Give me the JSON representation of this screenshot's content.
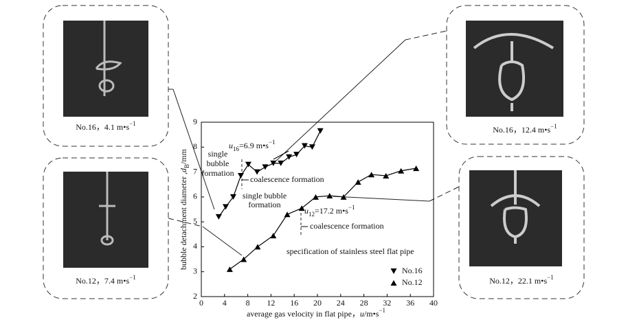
{
  "chart_data": {
    "type": "line",
    "x_label": {
      "text": "average gas velocity  in flat pipe，",
      "var": "u",
      "unit": "/m•s",
      "sup": "−1"
    },
    "y_label": {
      "text": "bubble detachment diameter ,",
      "var": "d",
      "sub": "B",
      "unit": "/mm"
    },
    "xlim": [
      0,
      40
    ],
    "xticks": [
      0,
      4,
      8,
      12,
      16,
      20,
      24,
      28,
      32,
      36,
      40
    ],
    "ylim": [
      2,
      9
    ],
    "yticks": [
      2,
      3,
      4,
      5,
      6,
      7,
      8,
      9
    ],
    "series": [
      {
        "name": "No.16",
        "marker": "down-triangle",
        "color": "#000000",
        "x": [
          3,
          4.2,
          5.5,
          6.8,
          8.1,
          9.6,
          11,
          12.4,
          13.7,
          15.1,
          16.4,
          17.8,
          19.1,
          20.5
        ],
        "values": [
          5.2,
          5.6,
          6.0,
          6.85,
          7.3,
          7.0,
          7.2,
          7.35,
          7.35,
          7.6,
          7.7,
          8.05,
          8.0,
          8.65
        ]
      },
      {
        "name": "No.12",
        "marker": "up-triangle",
        "color": "#000000",
        "x": [
          4.9,
          7.3,
          9.7,
          12.4,
          14.8,
          17.3,
          19.7,
          22.1,
          24.5,
          27,
          29.3,
          31.8,
          34.4,
          37
        ],
        "values": [
          3.1,
          3.5,
          4.0,
          4.45,
          5.3,
          5.55,
          6.0,
          6.05,
          6.0,
          6.6,
          6.9,
          6.85,
          7.05,
          7.15
        ]
      }
    ],
    "annotations": {
      "u16": {
        "var": "u",
        "sub": "16",
        "text": "=6.9 m•s",
        "sup": "−1"
      },
      "u12": {
        "var": "u",
        "sub": "12",
        "text": "=17.2 m•s",
        "sup": "−1"
      },
      "single_16": [
        "single",
        "bubble",
        "formation"
      ],
      "coalescence_16": "coalescence formation",
      "single_12": [
        "single bubble",
        "formation"
      ],
      "coalescence_12": "coalescence formation",
      "spec": "specification of stainless steel flat pipe"
    }
  },
  "photos": [
    {
      "caption": "No.16，4.1 m•s",
      "sup": "−1"
    },
    {
      "caption": "No.12，7.4 m•s",
      "sup": "−1"
    },
    {
      "caption": "No.16，12.4 m•s",
      "sup": "−1"
    },
    {
      "caption": "No.12，22.1 m•s",
      "sup": "−1"
    }
  ]
}
